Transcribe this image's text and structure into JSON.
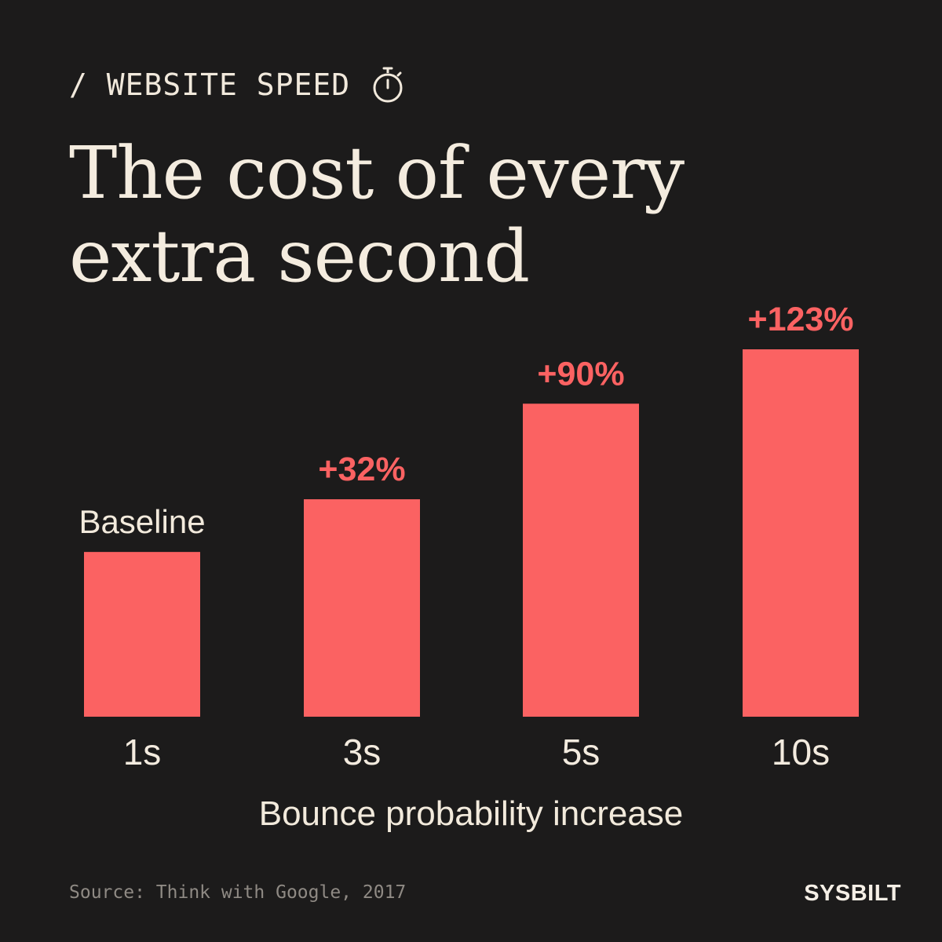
{
  "header": {
    "kicker": "/ WEBSITE SPEED",
    "kicker_icon": "stopwatch-icon",
    "title_line1": "The cost of every",
    "title_line2": "extra second"
  },
  "chart_data": {
    "type": "bar",
    "categories": [
      "1s",
      "3s",
      "5s",
      "10s"
    ],
    "values": [
      0,
      32,
      90,
      123
    ],
    "data_labels": [
      "Baseline",
      "+32%",
      "+90%",
      "+123%"
    ],
    "xlabel": "Bounce probability increase",
    "ylabel": "",
    "ylim": [
      -100,
      123
    ],
    "grid": false,
    "bar_color": "#fb6262",
    "label_color_baseline": "#f2eadc",
    "label_color_values": "#fb6262"
  },
  "footer": {
    "source": "Source: Think with Google, 2017",
    "brand": "SYSBILT"
  },
  "colors": {
    "background": "#1c1b1b",
    "text": "#f3ebdf",
    "accent": "#fb6262",
    "muted": "#8f8a84"
  }
}
